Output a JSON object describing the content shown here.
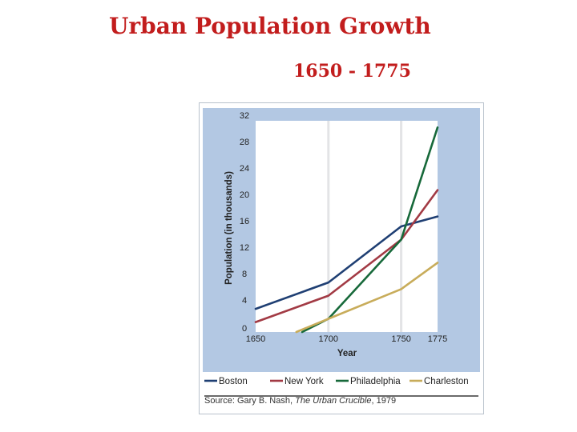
{
  "title": "Urban Population Growth",
  "subtitle": "1650 - 1775",
  "source": {
    "prefix": "Source: Gary B. Nash, ",
    "work": "The Urban Crucible",
    "suffix": ", 1979"
  },
  "colors": {
    "title": "#c21d1d",
    "panel": "#b3c8e3",
    "plot": "#ffffff",
    "grid_band": "#e3e4e6"
  },
  "chart_data": {
    "type": "line",
    "title": "",
    "xlabel": "Year",
    "ylabel": "Population (in thousands)",
    "xlim": [
      1650,
      1775
    ],
    "ylim": [
      0,
      32
    ],
    "xticks": [
      1650,
      1700,
      1750,
      1775
    ],
    "yticks": [
      0,
      4,
      8,
      12,
      16,
      20,
      24,
      28,
      32
    ],
    "grid": "vertical bands at 1700 and 1750",
    "legend": "bottom",
    "series": [
      {
        "name": "Boston",
        "color": "#1f3f73",
        "x": [
          1650,
          1700,
          1750,
          1775
        ],
        "y": [
          3.5,
          7.5,
          16,
          17.5
        ]
      },
      {
        "name": "New York",
        "color": "#a23a44",
        "x": [
          1650,
          1700,
          1750,
          1775
        ],
        "y": [
          1.5,
          5.5,
          14,
          21.5
        ]
      },
      {
        "name": "Philadelphia",
        "color": "#17693a",
        "x": [
          1682,
          1700,
          1750,
          1775
        ],
        "y": [
          0,
          2,
          14,
          31
        ]
      },
      {
        "name": "Charleston",
        "color": "#c8ac5a",
        "x": [
          1678,
          1700,
          1750,
          1775
        ],
        "y": [
          0,
          2,
          6.5,
          10.5
        ]
      }
    ]
  }
}
